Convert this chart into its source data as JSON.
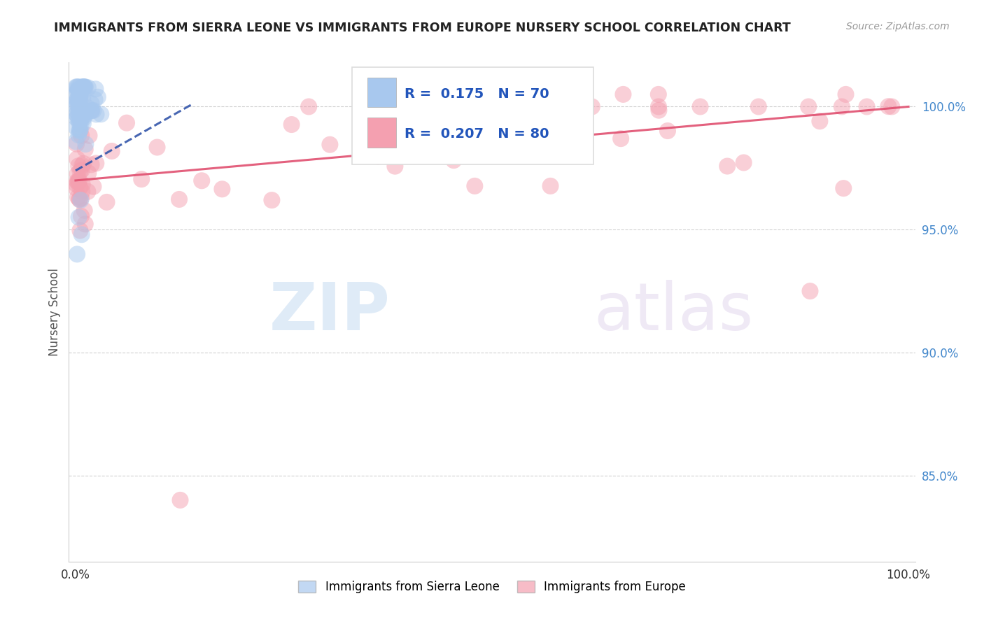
{
  "title": "IMMIGRANTS FROM SIERRA LEONE VS IMMIGRANTS FROM EUROPE NURSERY SCHOOL CORRELATION CHART",
  "source": "Source: ZipAtlas.com",
  "ylabel": "Nursery School",
  "blue_R": 0.175,
  "blue_N": 70,
  "pink_R": 0.207,
  "pink_N": 80,
  "blue_color": "#a8c8ee",
  "pink_color": "#f4a0b0",
  "blue_line_color": "#3355aa",
  "pink_line_color": "#e05070",
  "background_color": "#ffffff",
  "grid_color": "#cccccc",
  "ytick_values": [
    0.85,
    0.9,
    0.95,
    1.0
  ],
  "ytick_labels": [
    "85.0%",
    "90.0%",
    "95.0%",
    "100.0%"
  ],
  "yaxis_color": "#4488cc",
  "xlim": [
    0.0,
    1.0
  ],
  "ylim": [
    0.815,
    1.018
  ]
}
